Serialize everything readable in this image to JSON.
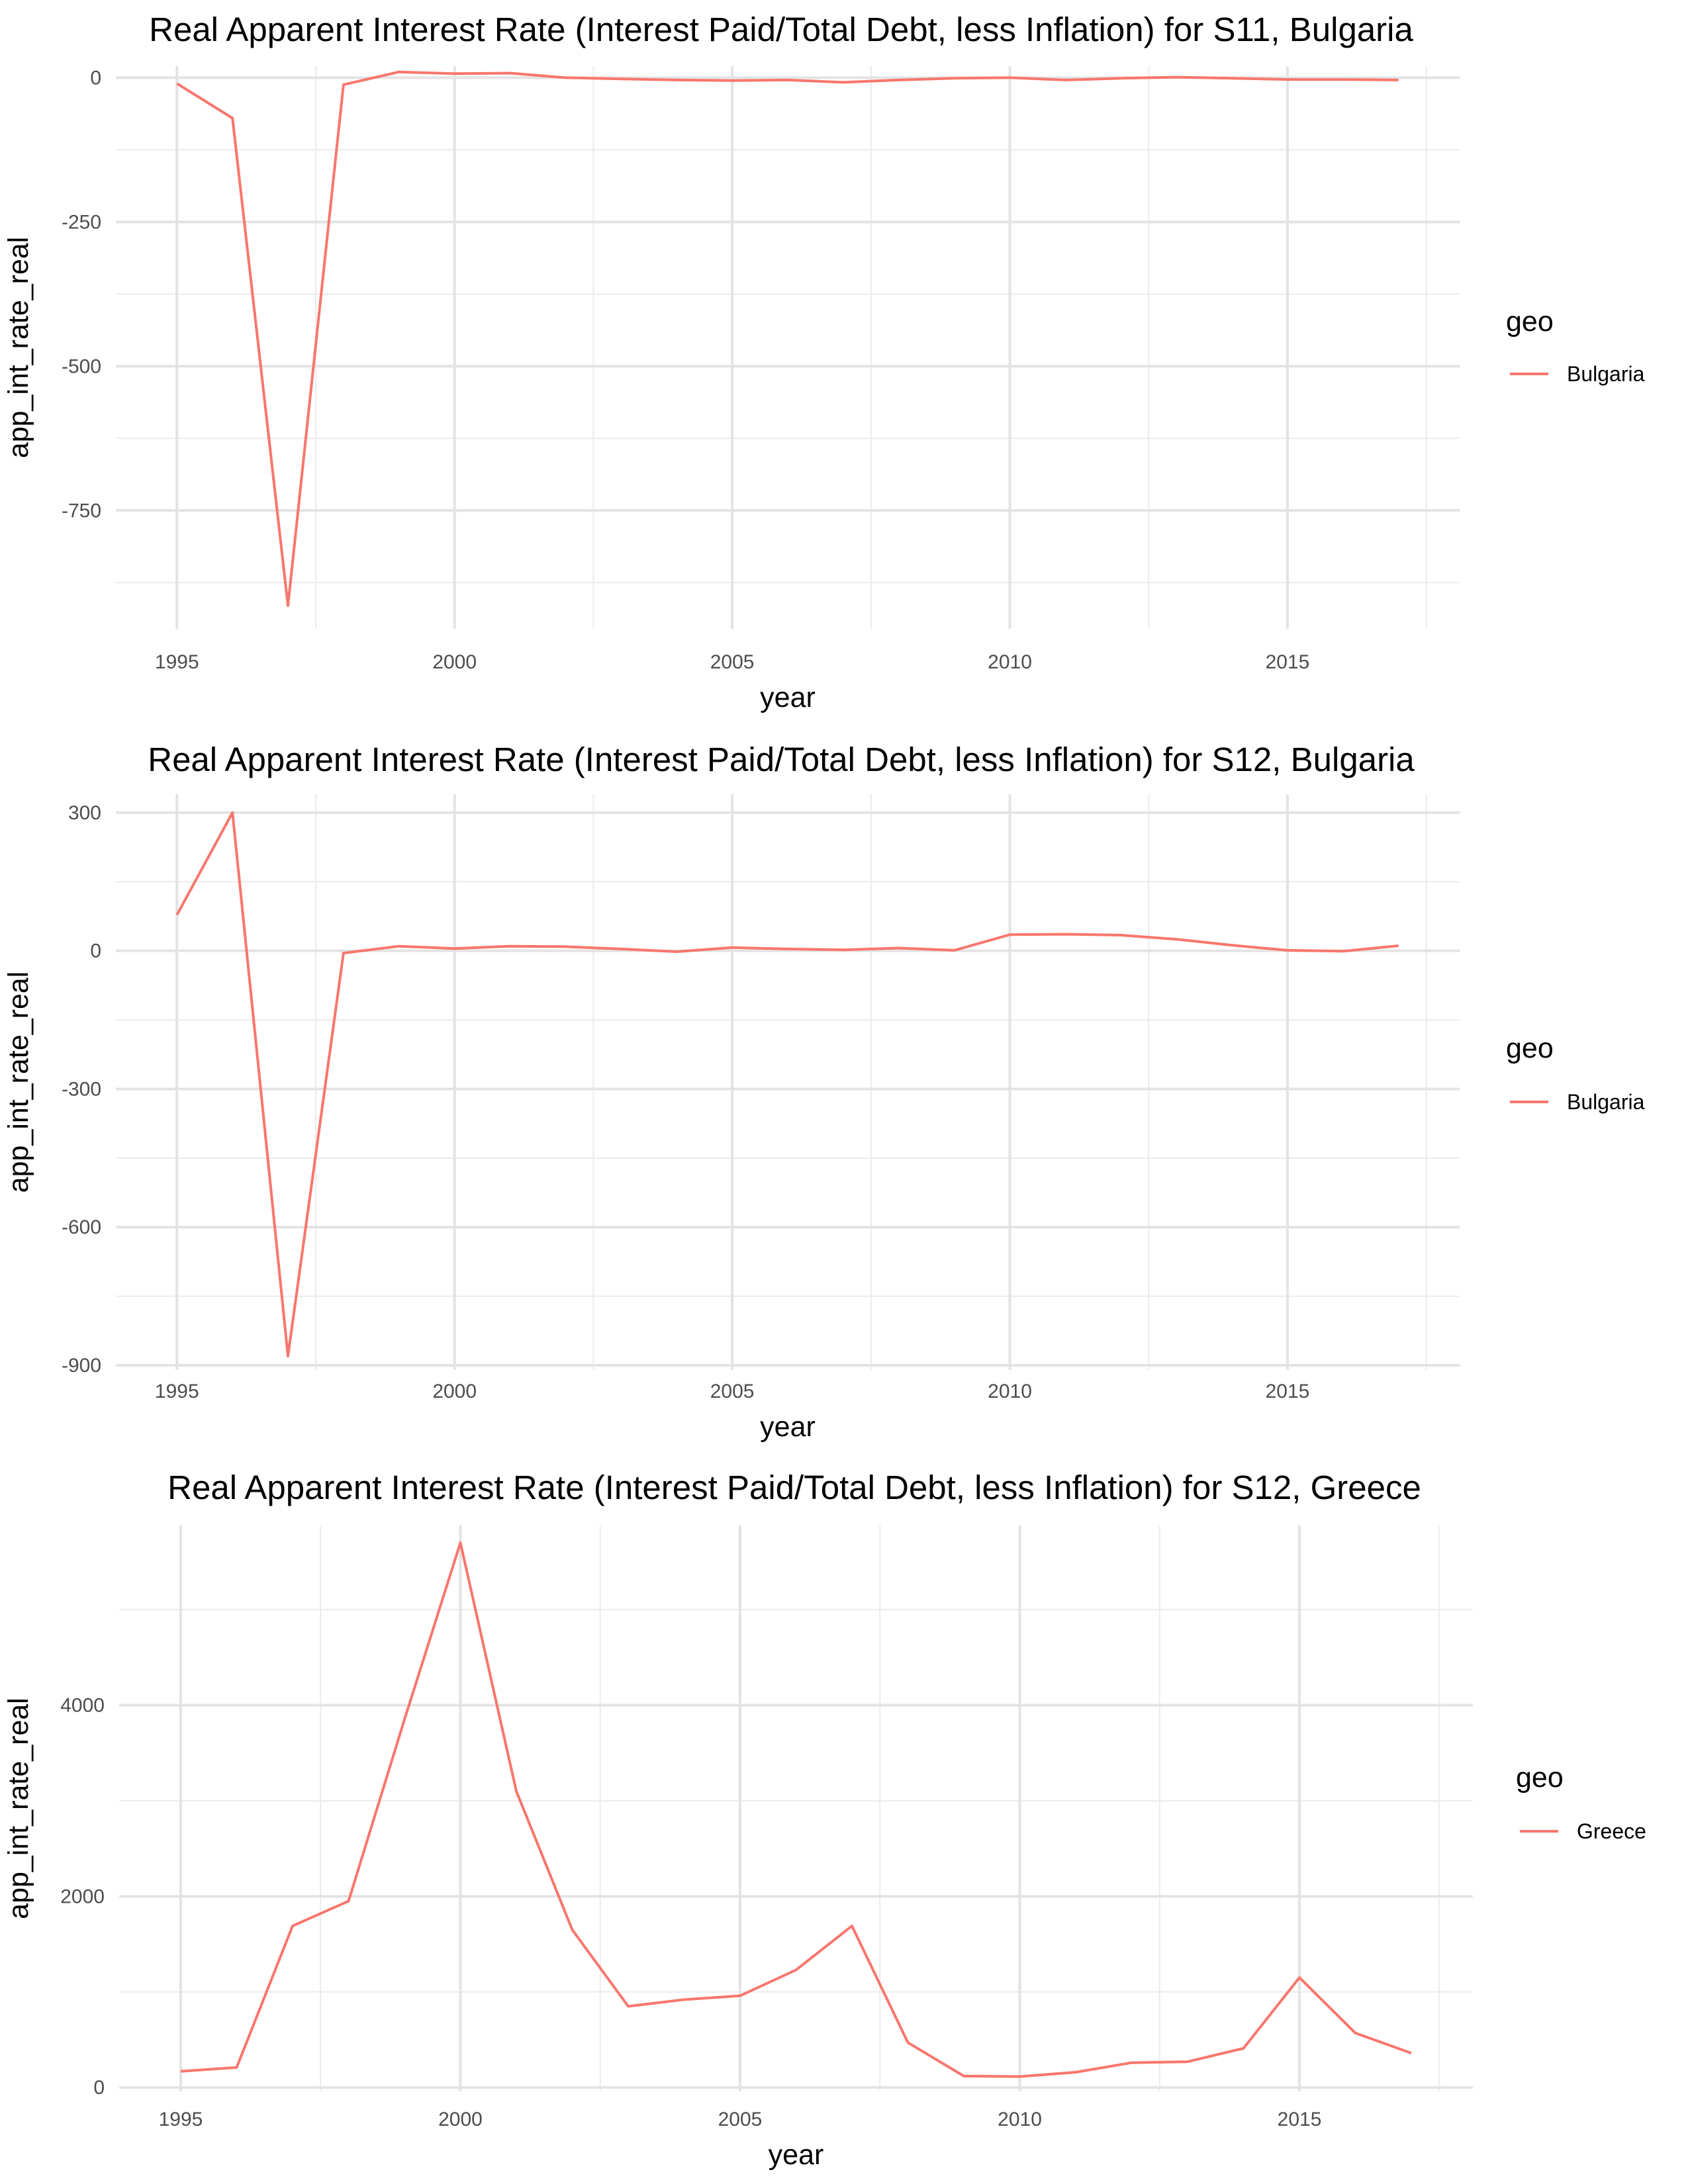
{
  "series_color": "#F8766D",
  "chart_data": [
    {
      "type": "line",
      "title": "Real Apparent Interest Rate (Interest Paid/Total Debt, less Inflation) for S11, Bulgaria",
      "xlabel": "year",
      "ylabel": "app_int_rate_real",
      "legend_title": "geo",
      "legend_position": "right",
      "grid": true,
      "xlim": [
        1993.9,
        2018.1
      ],
      "ylim": [
        -955,
        20
      ],
      "xticks": [
        1995,
        2000,
        2005,
        2010,
        2015
      ],
      "xtick_labels": [
        "1995",
        "2000",
        "2005",
        "2010",
        "2015"
      ],
      "yticks": [
        0,
        -250,
        -500,
        -750
      ],
      "ytick_labels": [
        "0",
        "-250",
        "-500",
        "-750"
      ],
      "series": [
        {
          "name": "Bulgaria",
          "x": [
            1995,
            1996,
            1997,
            1998,
            1999,
            2000,
            2001,
            2002,
            2003,
            2004,
            2005,
            2006,
            2007,
            2008,
            2009,
            2010,
            2011,
            2012,
            2013,
            2014,
            2015,
            2016,
            2017
          ],
          "values": [
            -10,
            -70,
            -915,
            -12,
            10,
            7,
            8,
            0,
            -2,
            -4,
            -5,
            -4,
            -8,
            -4,
            -1,
            0,
            -4,
            -1,
            1,
            -1,
            -3,
            -3,
            -4
          ]
        }
      ]
    },
    {
      "type": "line",
      "title": "Real Apparent Interest Rate (Interest Paid/Total Debt, less Inflation) for S12, Bulgaria",
      "xlabel": "year",
      "ylabel": "app_int_rate_real",
      "legend_title": "geo",
      "legend_position": "right",
      "grid": true,
      "xlim": [
        1993.9,
        2018.1
      ],
      "ylim": [
        -910,
        340
      ],
      "xticks": [
        1995,
        2000,
        2005,
        2010,
        2015
      ],
      "xtick_labels": [
        "1995",
        "2000",
        "2005",
        "2010",
        "2015"
      ],
      "yticks": [
        300,
        0,
        -300,
        -600,
        -900
      ],
      "ytick_labels": [
        "300",
        "0",
        "-300",
        "-600",
        "-900"
      ],
      "series": [
        {
          "name": "Bulgaria",
          "x": [
            1995,
            1996,
            1997,
            1998,
            1999,
            2000,
            2001,
            2002,
            2003,
            2004,
            2005,
            2006,
            2007,
            2008,
            2009,
            2010,
            2011,
            2012,
            2013,
            2014,
            2015,
            2016,
            2017
          ],
          "values": [
            78,
            300,
            -880,
            -5,
            10,
            5,
            10,
            9,
            4,
            -2,
            7,
            4,
            2,
            6,
            1,
            35,
            36,
            34,
            25,
            12,
            1,
            -1,
            11
          ]
        }
      ]
    },
    {
      "type": "line",
      "title": "Real Apparent Interest Rate (Interest Paid/Total Debt, less Inflation) for S12, Greece",
      "xlabel": "year",
      "ylabel": "app_int_rate_real",
      "legend_title": "geo",
      "legend_position": "right",
      "grid": true,
      "xlim": [
        1993.9,
        2018.1
      ],
      "ylim": [
        -40,
        5880
      ],
      "xticks": [
        1995,
        2000,
        2005,
        2010,
        2015
      ],
      "xtick_labels": [
        "1995",
        "2000",
        "2005",
        "2010",
        "2015"
      ],
      "yticks": [
        0,
        2000,
        4000
      ],
      "ytick_labels": [
        "0",
        "2000",
        "4000"
      ],
      "series": [
        {
          "name": "Greece",
          "x": [
            1995,
            1996,
            1997,
            1998,
            1999,
            2000,
            2001,
            2002,
            2003,
            2004,
            2005,
            2006,
            2007,
            2008,
            2009,
            2010,
            2011,
            2012,
            2013,
            2014,
            2015,
            2016,
            2017
          ],
          "values": [
            170,
            210,
            1690,
            1950,
            3850,
            5700,
            3100,
            1650,
            850,
            920,
            960,
            1230,
            1690,
            470,
            120,
            115,
            160,
            260,
            270,
            410,
            1150,
            570,
            360
          ]
        }
      ]
    }
  ]
}
